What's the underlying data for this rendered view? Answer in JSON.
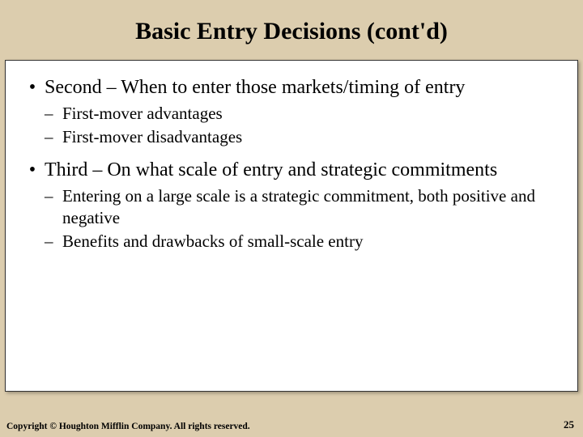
{
  "title": "Basic Entry Decisions (cont'd)",
  "bullets": {
    "b1": "Second – When to enter those markets/timing of entry",
    "b1s1": "First-mover advantages",
    "b1s2": "First-mover disadvantages",
    "b2": "Third – On what scale of entry and strategic commitments",
    "b2s1": "Entering on a large scale is a strategic commitment, both positive and negative",
    "b2s2": "Benefits and drawbacks of small-scale entry"
  },
  "footer": {
    "copyright": "Copyright © Houghton Mifflin Company. All rights reserved.",
    "page": "25"
  },
  "colors": {
    "background": "#dccdae",
    "contentBg": "#ffffff",
    "text": "#000000"
  }
}
